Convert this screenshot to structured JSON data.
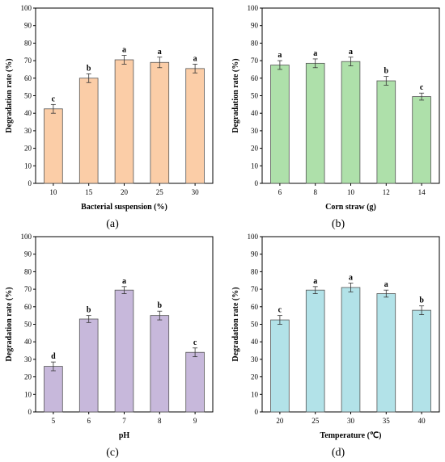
{
  "figure": {
    "panel_labels": [
      "(a)",
      "(b)",
      "(c)",
      "(d)"
    ]
  },
  "chart_data": [
    {
      "type": "bar",
      "panel": "(a)",
      "categories": [
        "10",
        "15",
        "20",
        "25",
        "30"
      ],
      "values": [
        42.5,
        60.0,
        70.5,
        69.0,
        65.5
      ],
      "errors": [
        2.5,
        2.5,
        2.5,
        3.0,
        2.5
      ],
      "significance": [
        "c",
        "b",
        "a",
        "a",
        "a"
      ],
      "xlabel": "Bacterial suspension (%)",
      "ylabel": "Degradation rate (%)",
      "ylim": [
        0,
        100
      ],
      "yticks": [
        0,
        10,
        20,
        30,
        40,
        50,
        60,
        70,
        80,
        90,
        100
      ],
      "bar_color": "#fbcda7",
      "edge_color": "#555555"
    },
    {
      "type": "bar",
      "panel": "(b)",
      "categories": [
        "6",
        "8",
        "10",
        "12",
        "14"
      ],
      "values": [
        67.5,
        68.5,
        69.5,
        58.5,
        49.5
      ],
      "errors": [
        2.5,
        2.5,
        2.5,
        2.5,
        2.0
      ],
      "significance": [
        "a",
        "a",
        "a",
        "b",
        "c"
      ],
      "xlabel": "Corn straw (g)",
      "ylabel": "Degradation rate (%)",
      "ylim": [
        0,
        100
      ],
      "yticks": [
        0,
        10,
        20,
        30,
        40,
        50,
        60,
        70,
        80,
        90,
        100
      ],
      "bar_color": "#aee0aa",
      "edge_color": "#555555"
    },
    {
      "type": "bar",
      "panel": "(c)",
      "categories": [
        "5",
        "6",
        "7",
        "8",
        "9"
      ],
      "values": [
        26.0,
        53.0,
        69.5,
        55.0,
        34.0
      ],
      "errors": [
        2.5,
        2.0,
        2.0,
        2.5,
        2.5
      ],
      "significance": [
        "d",
        "b",
        "a",
        "b",
        "c"
      ],
      "xlabel": "pH",
      "ylabel": "Degradation rate (%)",
      "ylim": [
        0,
        100
      ],
      "yticks": [
        0,
        10,
        20,
        30,
        40,
        50,
        60,
        70,
        80,
        90,
        100
      ],
      "bar_color": "#c7b8db",
      "edge_color": "#555555"
    },
    {
      "type": "bar",
      "panel": "(d)",
      "categories": [
        "20",
        "25",
        "30",
        "35",
        "40"
      ],
      "values": [
        52.5,
        69.5,
        71.0,
        67.5,
        58.0
      ],
      "errors": [
        2.5,
        2.0,
        2.5,
        2.0,
        2.5
      ],
      "significance": [
        "c",
        "a",
        "a",
        "a",
        "b"
      ],
      "xlabel": "Temperature (℃)",
      "ylabel": "Degradation rate (%)",
      "ylim": [
        0,
        100
      ],
      "yticks": [
        0,
        10,
        20,
        30,
        40,
        50,
        60,
        70,
        80,
        90,
        100
      ],
      "bar_color": "#b2e2e8",
      "edge_color": "#555555"
    }
  ]
}
